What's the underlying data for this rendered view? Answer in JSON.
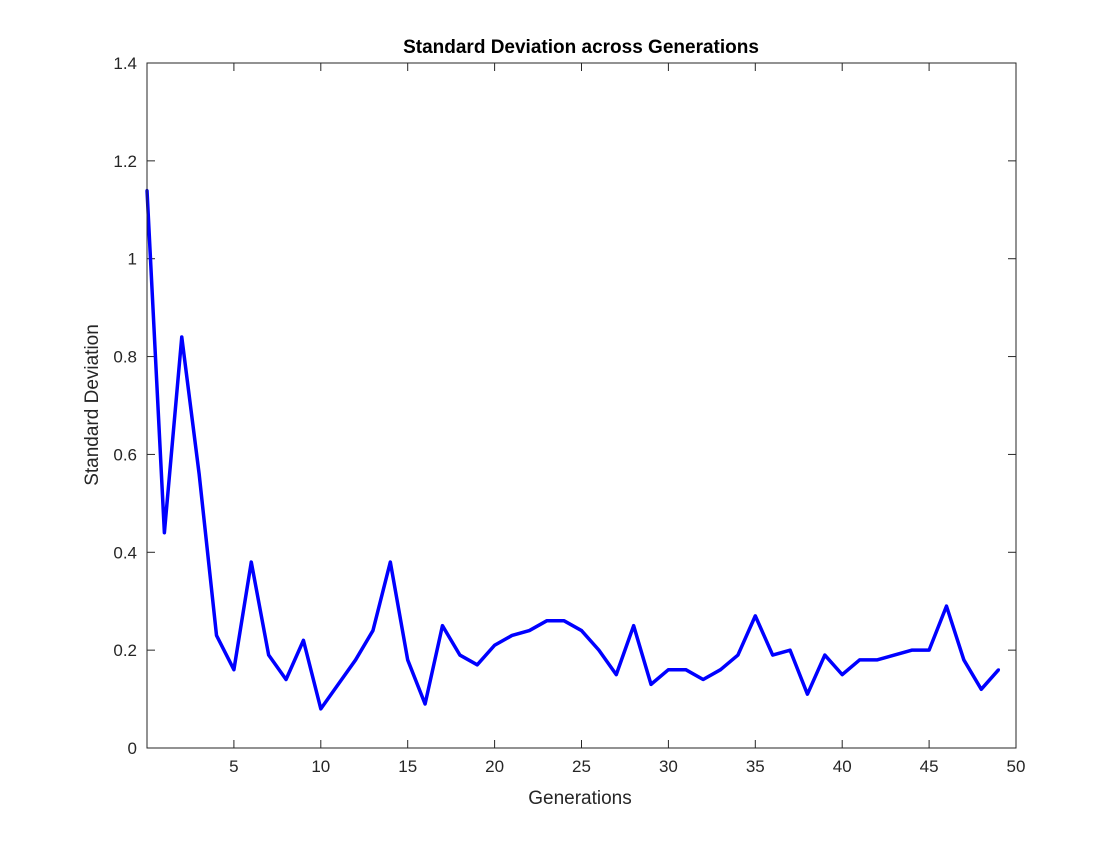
{
  "chart_data": {
    "type": "line",
    "title": "Standard Deviation across Generations",
    "xlabel": "Generations",
    "ylabel": "Standard Deviation",
    "xlim": [
      0,
      50
    ],
    "ylim": [
      0,
      1.4
    ],
    "xticks": [
      5,
      10,
      15,
      20,
      25,
      30,
      35,
      40,
      45,
      50
    ],
    "yticks": [
      0,
      0.2,
      0.4,
      0.6,
      0.8,
      1,
      1.2,
      1.4
    ],
    "ytick_labels": [
      "0",
      "0.2",
      "0.4",
      "0.6",
      "0.8",
      "1",
      "1.2",
      "1.4"
    ],
    "grid": false,
    "box": true,
    "series": [
      {
        "color": "#0000ff",
        "x": [
          0,
          1,
          2,
          3,
          4,
          5,
          6,
          7,
          8,
          9,
          10,
          11,
          12,
          13,
          14,
          15,
          16,
          17,
          18,
          19,
          20,
          21,
          22,
          23,
          24,
          25,
          26,
          27,
          28,
          29,
          30,
          31,
          32,
          33,
          34,
          35,
          36,
          37,
          38,
          39,
          40,
          41,
          42,
          43,
          44,
          45,
          46,
          47,
          48,
          49
        ],
        "y": [
          1.14,
          0.44,
          0.84,
          0.56,
          0.23,
          0.16,
          0.38,
          0.19,
          0.14,
          0.22,
          0.08,
          0.13,
          0.18,
          0.24,
          0.38,
          0.18,
          0.09,
          0.25,
          0.19,
          0.17,
          0.21,
          0.23,
          0.24,
          0.26,
          0.26,
          0.24,
          0.2,
          0.15,
          0.25,
          0.13,
          0.16,
          0.16,
          0.14,
          0.16,
          0.19,
          0.27,
          0.19,
          0.2,
          0.11,
          0.19,
          0.15,
          0.18,
          0.18,
          0.19,
          0.2,
          0.2,
          0.29,
          0.18,
          0.12,
          0.16
        ]
      }
    ]
  }
}
